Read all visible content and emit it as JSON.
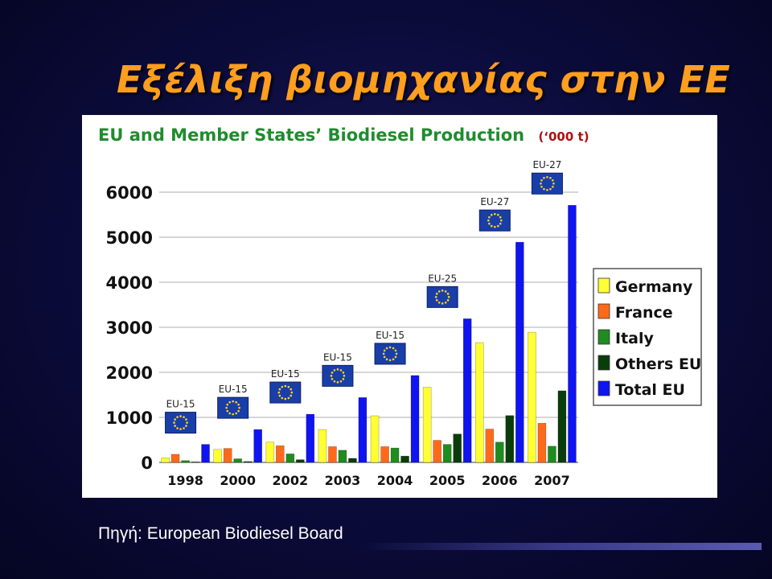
{
  "slide": {
    "title": "Εξέλιξη βιομηχανίας στην ΕΕ",
    "source": "Πηγή: European Biodiesel Board"
  },
  "chart_data": {
    "type": "bar",
    "title": "EU and Member States’ Biodiesel Production",
    "unit": "(‘000 t)",
    "categories": [
      "1998",
      "2000",
      "2002",
      "2003",
      "2004",
      "2005",
      "2006",
      "2007"
    ],
    "group_labels": [
      "EU-15",
      "EU-15",
      "EU-15",
      "EU-15",
      "EU-15",
      "EU-25",
      "EU-27",
      "EU-27"
    ],
    "ylim": [
      0,
      6000
    ],
    "yticks": [
      0,
      1000,
      2000,
      3000,
      4000,
      5000,
      6000
    ],
    "ytick_labels": [
      "0",
      "1000",
      "2000",
      "3000",
      "4000",
      "5000",
      "6000"
    ],
    "grid": true,
    "legend_position": "right",
    "series": [
      {
        "name": "Germany",
        "color": "#ffff33",
        "values": [
          100,
          290,
          450,
          730,
          1035,
          1670,
          2660,
          2890
        ]
      },
      {
        "name": "France",
        "color": "#ff6a1a",
        "values": [
          180,
          310,
          370,
          350,
          350,
          490,
          740,
          870
        ]
      },
      {
        "name": "Italy",
        "color": "#1e8c1e",
        "values": [
          40,
          80,
          190,
          270,
          320,
          400,
          450,
          360
        ]
      },
      {
        "name": "Others EU",
        "color": "#0a3d0a",
        "values": [
          10,
          20,
          60,
          90,
          140,
          630,
          1040,
          1590
        ]
      },
      {
        "name": "Total EU",
        "color": "#0f14f0",
        "values": [
          400,
          730,
          1070,
          1440,
          1930,
          3190,
          4890,
          5710
        ]
      }
    ]
  }
}
